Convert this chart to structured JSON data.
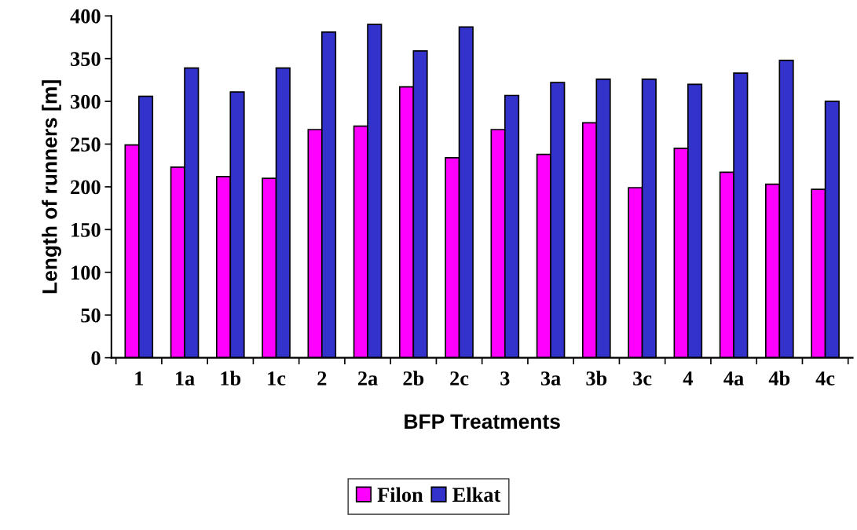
{
  "chart_data": {
    "type": "bar",
    "xlabel": "BFP Treatments",
    "ylabel": "Length of runners [m]",
    "categories": [
      "1",
      "1a",
      "1b",
      "1c",
      "2",
      "2a",
      "2b",
      "2c",
      "3",
      "3a",
      "3b",
      "3c",
      "4",
      "4a",
      "4b",
      "4c"
    ],
    "series": [
      {
        "name": "Filon",
        "color": "#ff00ff",
        "values": [
          249,
          223,
          212,
          210,
          267,
          271,
          317,
          234,
          267,
          238,
          275,
          199,
          245,
          217,
          203,
          197
        ]
      },
      {
        "name": "Elkat",
        "color": "#3333cc",
        "values": [
          306,
          339,
          311,
          339,
          381,
          390,
          359,
          387,
          307,
          322,
          326,
          326,
          320,
          333,
          348,
          300
        ]
      }
    ],
    "ylim": [
      0,
      400
    ],
    "yticks": [
      0,
      50,
      100,
      150,
      200,
      250,
      300,
      350,
      400
    ],
    "grid": false,
    "legend": "bottom"
  }
}
